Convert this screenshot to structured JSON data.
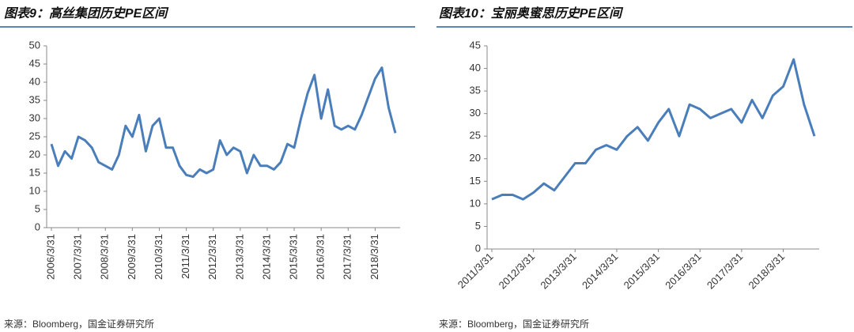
{
  "chart_data": [
    {
      "type": "line",
      "title": "图表9：高丝集团历史PE区间",
      "source": "来源：Bloomberg，国金证券研究所",
      "categories": [
        "2006/3/31",
        null,
        null,
        null,
        "2007/3/31",
        null,
        null,
        null,
        "2008/3/31",
        null,
        null,
        null,
        "2009/3/31",
        null,
        null,
        null,
        "2010/3/31",
        null,
        null,
        null,
        "2011/3/31",
        null,
        null,
        null,
        "2012/3/31",
        null,
        null,
        null,
        "2013/3/31",
        null,
        null,
        null,
        "2014/3/31",
        null,
        null,
        null,
        "2015/3/31",
        null,
        null,
        null,
        "2016/3/31",
        null,
        null,
        null,
        "2017/3/31",
        null,
        null,
        null,
        "2018/3/31",
        null,
        null,
        null
      ],
      "series": [
        {
          "color": "#4a7ebb",
          "values": [
            23,
            17,
            21,
            19,
            25,
            24,
            22,
            18,
            17,
            16,
            20,
            28,
            25,
            31,
            21,
            28,
            30,
            22,
            22,
            17,
            14.5,
            14,
            16,
            15,
            16,
            24,
            20,
            22,
            21,
            15,
            20,
            17,
            17,
            16,
            18,
            23,
            22,
            30,
            37,
            42,
            30,
            38,
            28,
            27,
            28,
            27,
            31,
            36,
            41,
            44,
            33,
            26
          ]
        }
      ],
      "ylim": [
        0,
        50
      ],
      "yticks": [
        0,
        5,
        10,
        15,
        20,
        25,
        30,
        35,
        40,
        45,
        50
      ]
    },
    {
      "type": "line",
      "title": "图表10：宝丽奥蜜思历史PE区间",
      "source": "来源：Bloomberg，国金证券研究所",
      "categories": [
        "2011/3/31",
        null,
        null,
        null,
        "2012/3/31",
        null,
        null,
        null,
        "2013/3/31",
        null,
        null,
        null,
        "2014/3/31",
        null,
        null,
        null,
        "2015/3/31",
        null,
        null,
        null,
        "2016/3/31",
        null,
        null,
        null,
        "2017/3/31",
        null,
        null,
        null,
        "2018/3/31",
        null,
        null,
        null
      ],
      "series": [
        {
          "color": "#4a7ebb",
          "values": [
            11,
            12,
            12,
            11,
            12.5,
            14.5,
            13,
            16,
            19,
            19,
            22,
            23,
            22,
            25,
            27,
            24,
            28,
            31,
            25,
            32,
            31,
            29,
            30,
            31,
            28,
            33,
            29,
            34,
            36,
            42,
            32,
            25
          ]
        }
      ],
      "ylim": [
        0,
        45
      ],
      "yticks": [
        0,
        5,
        10,
        15,
        20,
        25,
        30,
        35,
        40,
        45
      ]
    }
  ]
}
